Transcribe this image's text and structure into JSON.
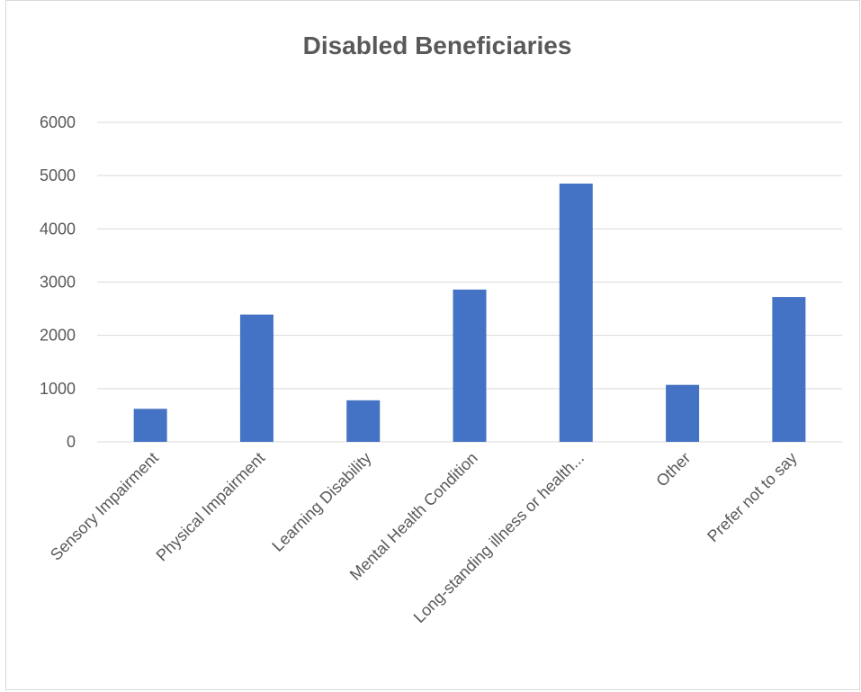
{
  "chart_data": {
    "type": "bar",
    "title": "Disabled Beneficiaries",
    "xlabel": "",
    "ylabel": "",
    "categories": [
      "Sensory Impairment",
      "Physical Impairment",
      "Learning Disability",
      "Mental Health Condition",
      "Long-standing illness or health...",
      "Other",
      "Prefer not to say"
    ],
    "values": [
      620,
      2390,
      780,
      2860,
      4850,
      1070,
      2720
    ],
    "ylim": [
      0,
      6000
    ],
    "yticks": [
      0,
      1000,
      2000,
      3000,
      4000,
      5000,
      6000
    ],
    "grid": true,
    "legend": "none",
    "bar_color": "#4472c4"
  }
}
